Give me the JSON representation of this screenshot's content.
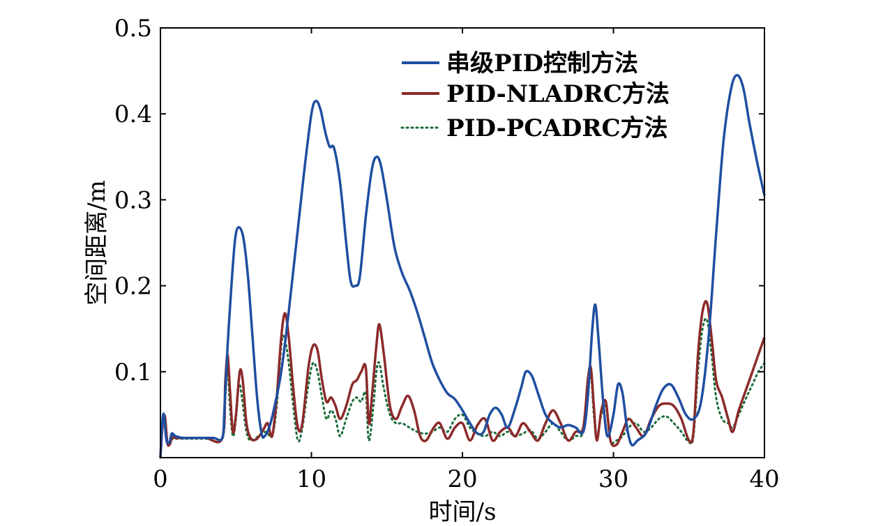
{
  "chart_data": {
    "type": "line",
    "title": "",
    "xlabel": "时间/s",
    "ylabel": "空间距离/m",
    "xlim": [
      0,
      40
    ],
    "ylim": [
      0,
      0.5
    ],
    "xticks": [
      0,
      10,
      20,
      30,
      40
    ],
    "xtick_labels": [
      "0",
      "10",
      "20",
      "30",
      "40"
    ],
    "yticks": [
      0.1,
      0.2,
      0.3,
      0.4,
      0.5
    ],
    "ytick_labels": [
      "0.1",
      "0.2",
      "0.3",
      "0.4",
      "0.5"
    ],
    "grid": false,
    "legend_position": "top-right",
    "series": [
      {
        "name": "串级PID控制方法",
        "color": "#1f4ea1",
        "style": "solid",
        "points": [
          [
            0,
            0
          ],
          [
            0.15,
            0.045
          ],
          [
            0.25,
            0.048
          ],
          [
            0.4,
            0.02
          ],
          [
            0.6,
            0.018
          ],
          [
            0.75,
            0.028
          ],
          [
            1,
            0.025
          ],
          [
            1.5,
            0.023
          ],
          [
            2.5,
            0.023
          ],
          [
            3.5,
            0.023
          ],
          [
            4.1,
            0.023
          ],
          [
            4.25,
            0.06
          ],
          [
            4.45,
            0.13
          ],
          [
            4.7,
            0.2
          ],
          [
            4.95,
            0.255
          ],
          [
            5.2,
            0.268
          ],
          [
            5.5,
            0.255
          ],
          [
            5.8,
            0.21
          ],
          [
            6.1,
            0.14
          ],
          [
            6.4,
            0.07
          ],
          [
            6.7,
            0.028
          ],
          [
            6.9,
            0.025
          ],
          [
            7.2,
            0.035
          ],
          [
            7.5,
            0.055
          ],
          [
            8,
            0.1
          ],
          [
            8.5,
            0.17
          ],
          [
            9,
            0.25
          ],
          [
            9.5,
            0.33
          ],
          [
            10,
            0.4
          ],
          [
            10.3,
            0.415
          ],
          [
            10.6,
            0.405
          ],
          [
            10.9,
            0.38
          ],
          [
            11.2,
            0.362
          ],
          [
            11.5,
            0.36
          ],
          [
            11.9,
            0.32
          ],
          [
            12.3,
            0.25
          ],
          [
            12.6,
            0.205
          ],
          [
            12.9,
            0.2
          ],
          [
            13.2,
            0.21
          ],
          [
            13.6,
            0.28
          ],
          [
            14,
            0.335
          ],
          [
            14.3,
            0.35
          ],
          [
            14.6,
            0.34
          ],
          [
            15,
            0.3
          ],
          [
            15.5,
            0.245
          ],
          [
            16,
            0.215
          ],
          [
            16.5,
            0.195
          ],
          [
            17,
            0.17
          ],
          [
            17.5,
            0.14
          ],
          [
            18,
            0.11
          ],
          [
            18.5,
            0.09
          ],
          [
            19,
            0.075
          ],
          [
            19.5,
            0.068
          ],
          [
            20,
            0.055
          ],
          [
            20.5,
            0.04
          ],
          [
            21,
            0.028
          ],
          [
            21.4,
            0.03
          ],
          [
            21.8,
            0.05
          ],
          [
            22.2,
            0.058
          ],
          [
            22.6,
            0.05
          ],
          [
            23,
            0.035
          ],
          [
            23.5,
            0.058
          ],
          [
            23.9,
            0.082
          ],
          [
            24.2,
            0.1
          ],
          [
            24.6,
            0.095
          ],
          [
            25,
            0.075
          ],
          [
            25.5,
            0.05
          ],
          [
            26,
            0.04
          ],
          [
            26.5,
            0.035
          ],
          [
            27,
            0.038
          ],
          [
            27.5,
            0.035
          ],
          [
            28,
            0.03
          ],
          [
            28.3,
            0.07
          ],
          [
            28.6,
            0.15
          ],
          [
            28.8,
            0.178
          ],
          [
            29,
            0.14
          ],
          [
            29.3,
            0.07
          ],
          [
            29.6,
            0.025
          ],
          [
            30,
            0.05
          ],
          [
            30.3,
            0.085
          ],
          [
            30.6,
            0.075
          ],
          [
            30.9,
            0.035
          ],
          [
            31.2,
            0.015
          ],
          [
            31.6,
            0.02
          ],
          [
            32.2,
            0.03
          ],
          [
            32.8,
            0.06
          ],
          [
            33.3,
            0.08
          ],
          [
            33.8,
            0.085
          ],
          [
            34.3,
            0.07
          ],
          [
            34.8,
            0.05
          ],
          [
            35.3,
            0.045
          ],
          [
            35.8,
            0.065
          ],
          [
            36.3,
            0.14
          ],
          [
            36.8,
            0.26
          ],
          [
            37.3,
            0.37
          ],
          [
            37.8,
            0.43
          ],
          [
            38.2,
            0.445
          ],
          [
            38.6,
            0.43
          ],
          [
            39,
            0.39
          ],
          [
            39.5,
            0.345
          ],
          [
            40,
            0.305
          ]
        ]
      },
      {
        "name": "PID-NLADRC方法",
        "color": "#8b2a2a",
        "style": "solid",
        "points": [
          [
            0,
            0
          ],
          [
            0.15,
            0.04
          ],
          [
            0.3,
            0.048
          ],
          [
            0.45,
            0.018
          ],
          [
            0.6,
            0.015
          ],
          [
            0.8,
            0.025
          ],
          [
            1,
            0.023
          ],
          [
            2,
            0.023
          ],
          [
            3,
            0.023
          ],
          [
            4.1,
            0.023
          ],
          [
            4.3,
            0.09
          ],
          [
            4.45,
            0.12
          ],
          [
            4.6,
            0.08
          ],
          [
            4.8,
            0.03
          ],
          [
            5,
            0.05
          ],
          [
            5.25,
            0.1
          ],
          [
            5.45,
            0.09
          ],
          [
            5.7,
            0.04
          ],
          [
            6,
            0.022
          ],
          [
            6.4,
            0.022
          ],
          [
            6.8,
            0.032
          ],
          [
            7.1,
            0.04
          ],
          [
            7.4,
            0.025
          ],
          [
            7.7,
            0.07
          ],
          [
            8,
            0.14
          ],
          [
            8.25,
            0.168
          ],
          [
            8.5,
            0.14
          ],
          [
            8.8,
            0.08
          ],
          [
            9.1,
            0.035
          ],
          [
            9.4,
            0.04
          ],
          [
            9.8,
            0.105
          ],
          [
            10.1,
            0.13
          ],
          [
            10.4,
            0.125
          ],
          [
            10.7,
            0.09
          ],
          [
            11,
            0.065
          ],
          [
            11.3,
            0.07
          ],
          [
            11.6,
            0.06
          ],
          [
            11.9,
            0.045
          ],
          [
            12.3,
            0.06
          ],
          [
            12.7,
            0.085
          ],
          [
            13,
            0.09
          ],
          [
            13.3,
            0.1
          ],
          [
            13.6,
            0.105
          ],
          [
            13.8,
            0.04
          ],
          [
            14,
            0.07
          ],
          [
            14.3,
            0.13
          ],
          [
            14.5,
            0.155
          ],
          [
            14.8,
            0.12
          ],
          [
            15.2,
            0.06
          ],
          [
            15.6,
            0.045
          ],
          [
            16,
            0.06
          ],
          [
            16.4,
            0.072
          ],
          [
            16.8,
            0.055
          ],
          [
            17.2,
            0.025
          ],
          [
            17.6,
            0.02
          ],
          [
            18.1,
            0.035
          ],
          [
            18.5,
            0.04
          ],
          [
            19,
            0.022
          ],
          [
            19.5,
            0.035
          ],
          [
            20,
            0.04
          ],
          [
            20.5,
            0.02
          ],
          [
            21,
            0.038
          ],
          [
            21.5,
            0.045
          ],
          [
            22,
            0.02
          ],
          [
            22.5,
            0.03
          ],
          [
            23,
            0.035
          ],
          [
            23.5,
            0.025
          ],
          [
            24,
            0.04
          ],
          [
            24.5,
            0.03
          ],
          [
            25,
            0.02
          ],
          [
            25.5,
            0.04
          ],
          [
            26,
            0.055
          ],
          [
            26.5,
            0.04
          ],
          [
            27,
            0.02
          ],
          [
            27.5,
            0.03
          ],
          [
            28,
            0.035
          ],
          [
            28.3,
            0.09
          ],
          [
            28.5,
            0.105
          ],
          [
            28.7,
            0.06
          ],
          [
            28.9,
            0.02
          ],
          [
            29.2,
            0.055
          ],
          [
            29.5,
            0.065
          ],
          [
            29.8,
            0.02
          ],
          [
            30.2,
            0.015
          ],
          [
            30.6,
            0.03
          ],
          [
            31,
            0.045
          ],
          [
            31.5,
            0.035
          ],
          [
            32,
            0.025
          ],
          [
            32.5,
            0.045
          ],
          [
            33,
            0.06
          ],
          [
            33.5,
            0.063
          ],
          [
            34,
            0.06
          ],
          [
            34.5,
            0.045
          ],
          [
            35,
            0.02
          ],
          [
            35.3,
            0.03
          ],
          [
            35.6,
            0.12
          ],
          [
            35.9,
            0.17
          ],
          [
            36.2,
            0.18
          ],
          [
            36.5,
            0.14
          ],
          [
            36.8,
            0.09
          ],
          [
            37.2,
            0.07
          ],
          [
            37.6,
            0.045
          ],
          [
            37.9,
            0.03
          ],
          [
            38.3,
            0.055
          ],
          [
            38.8,
            0.08
          ],
          [
            39.2,
            0.1
          ],
          [
            39.6,
            0.12
          ],
          [
            40,
            0.14
          ]
        ]
      },
      {
        "name": "PID-PCADRC方法",
        "color": "#1b6b3a",
        "style": "dotted",
        "points": [
          [
            0,
            0
          ],
          [
            0.15,
            0.035
          ],
          [
            0.3,
            0.045
          ],
          [
            0.45,
            0.02
          ],
          [
            0.6,
            0.015
          ],
          [
            0.8,
            0.022
          ],
          [
            1,
            0.022
          ],
          [
            2,
            0.022
          ],
          [
            3,
            0.022
          ],
          [
            4.1,
            0.022
          ],
          [
            4.3,
            0.07
          ],
          [
            4.45,
            0.105
          ],
          [
            4.6,
            0.06
          ],
          [
            4.8,
            0.025
          ],
          [
            5,
            0.045
          ],
          [
            5.2,
            0.085
          ],
          [
            5.4,
            0.07
          ],
          [
            5.7,
            0.03
          ],
          [
            6,
            0.02
          ],
          [
            6.5,
            0.025
          ],
          [
            7,
            0.03
          ],
          [
            7.4,
            0.025
          ],
          [
            7.7,
            0.06
          ],
          [
            8,
            0.13
          ],
          [
            8.2,
            0.14
          ],
          [
            8.5,
            0.11
          ],
          [
            8.8,
            0.06
          ],
          [
            9.1,
            0.02
          ],
          [
            9.4,
            0.035
          ],
          [
            9.8,
            0.085
          ],
          [
            10.1,
            0.11
          ],
          [
            10.4,
            0.1
          ],
          [
            10.7,
            0.07
          ],
          [
            11,
            0.045
          ],
          [
            11.3,
            0.055
          ],
          [
            11.6,
            0.045
          ],
          [
            11.9,
            0.025
          ],
          [
            12.3,
            0.045
          ],
          [
            12.7,
            0.065
          ],
          [
            13,
            0.07
          ],
          [
            13.3,
            0.065
          ],
          [
            13.6,
            0.075
          ],
          [
            13.8,
            0.02
          ],
          [
            14.1,
            0.06
          ],
          [
            14.3,
            0.1
          ],
          [
            14.5,
            0.11
          ],
          [
            14.8,
            0.08
          ],
          [
            15.2,
            0.05
          ],
          [
            15.6,
            0.04
          ],
          [
            16,
            0.04
          ],
          [
            16.5,
            0.035
          ],
          [
            17,
            0.03
          ],
          [
            17.5,
            0.028
          ],
          [
            18,
            0.03
          ],
          [
            18.5,
            0.035
          ],
          [
            19,
            0.03
          ],
          [
            19.5,
            0.045
          ],
          [
            20,
            0.05
          ],
          [
            20.5,
            0.035
          ],
          [
            21,
            0.028
          ],
          [
            21.5,
            0.025
          ],
          [
            22,
            0.03
          ],
          [
            22.5,
            0.025
          ],
          [
            23,
            0.03
          ],
          [
            23.5,
            0.025
          ],
          [
            24,
            0.028
          ],
          [
            24.5,
            0.032
          ],
          [
            25,
            0.022
          ],
          [
            25.5,
            0.03
          ],
          [
            26,
            0.04
          ],
          [
            26.5,
            0.03
          ],
          [
            27,
            0.02
          ],
          [
            27.5,
            0.025
          ],
          [
            28,
            0.03
          ],
          [
            28.3,
            0.08
          ],
          [
            28.5,
            0.1
          ],
          [
            28.7,
            0.05
          ],
          [
            28.9,
            0.025
          ],
          [
            29.2,
            0.05
          ],
          [
            29.5,
            0.06
          ],
          [
            29.8,
            0.02
          ],
          [
            30.2,
            0.02
          ],
          [
            30.6,
            0.025
          ],
          [
            31,
            0.035
          ],
          [
            31.5,
            0.04
          ],
          [
            32,
            0.03
          ],
          [
            32.5,
            0.035
          ],
          [
            33,
            0.045
          ],
          [
            33.5,
            0.048
          ],
          [
            34,
            0.04
          ],
          [
            34.5,
            0.03
          ],
          [
            35,
            0.018
          ],
          [
            35.3,
            0.025
          ],
          [
            35.6,
            0.1
          ],
          [
            35.9,
            0.15
          ],
          [
            36.2,
            0.16
          ],
          [
            36.5,
            0.12
          ],
          [
            36.8,
            0.07
          ],
          [
            37.2,
            0.045
          ],
          [
            37.6,
            0.04
          ],
          [
            37.9,
            0.035
          ],
          [
            38.3,
            0.05
          ],
          [
            38.8,
            0.07
          ],
          [
            39.2,
            0.085
          ],
          [
            39.6,
            0.1
          ],
          [
            40,
            0.11
          ]
        ]
      }
    ]
  }
}
